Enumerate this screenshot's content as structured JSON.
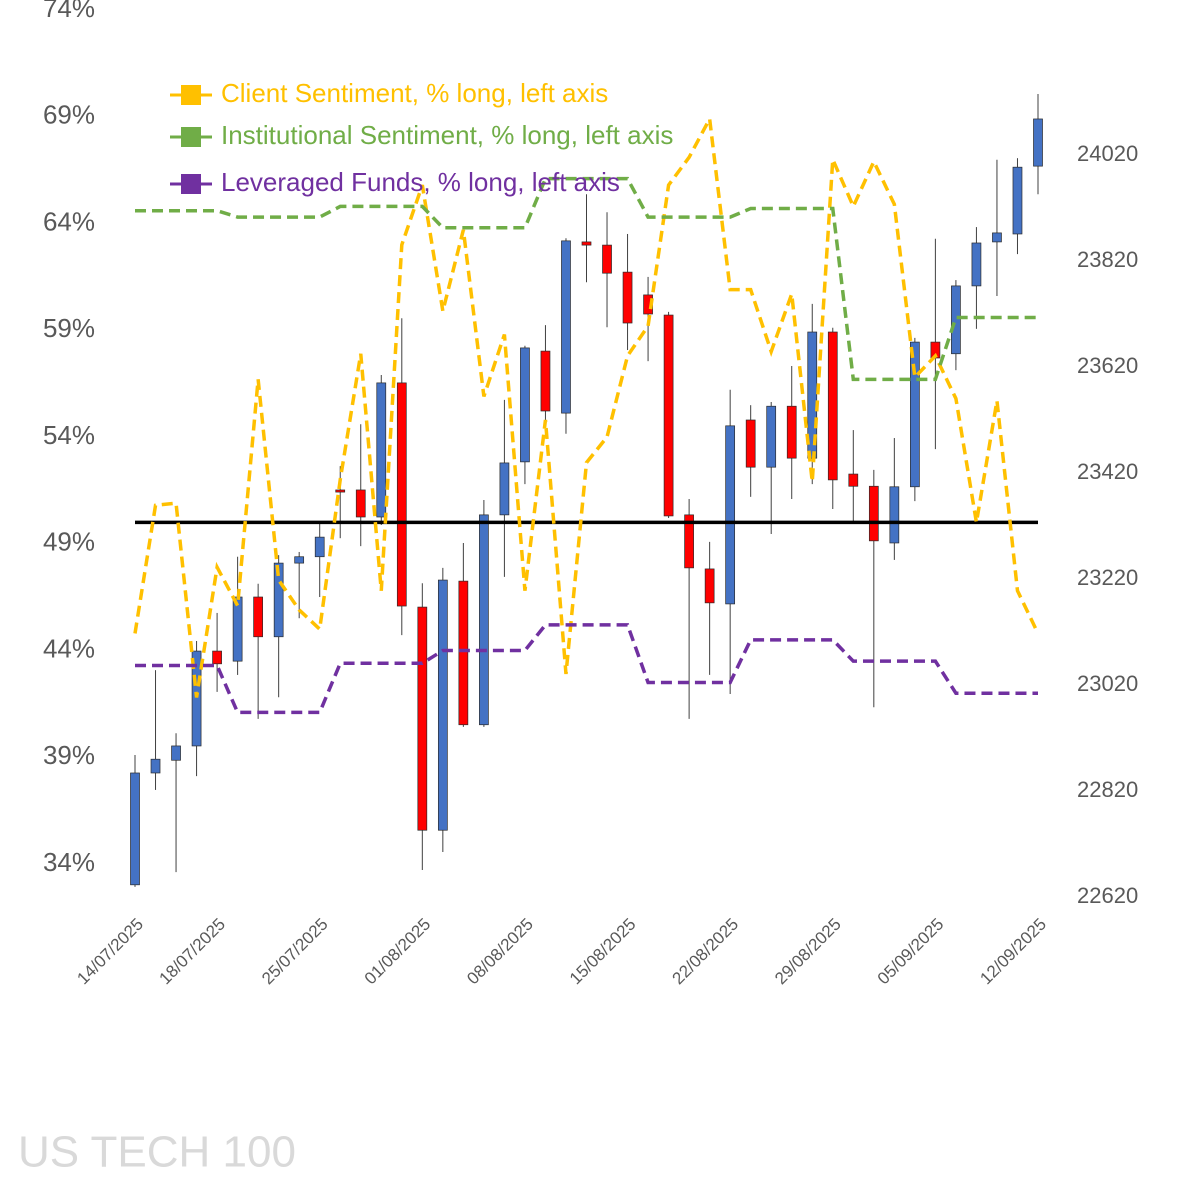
{
  "chart_data": {
    "type": "candlestick",
    "title": "US TECH 100",
    "categories": [
      "14/07/2025",
      null,
      null,
      null,
      "18/07/2025",
      null,
      null,
      null,
      null,
      "25/07/2025",
      null,
      null,
      null,
      null,
      "01/08/2025",
      null,
      null,
      null,
      null,
      "08/08/2025",
      null,
      null,
      null,
      null,
      "15/08/2025",
      null,
      null,
      null,
      null,
      "22/08/2025",
      null,
      null,
      null,
      null,
      "29/08/2025",
      null,
      null,
      null,
      null,
      "05/09/2025",
      null,
      null,
      null,
      null,
      "12/09/2025"
    ],
    "candles": {
      "axis": "y2",
      "up_color": "#4472c4",
      "down_color": "#ff0000",
      "open": [
        22643,
        22854,
        22878,
        22905,
        23084,
        23065,
        23186,
        23111,
        23250,
        23262,
        23388,
        23388,
        23337,
        23590,
        23167,
        22746,
        23216,
        22945,
        23341,
        23441,
        23650,
        23533,
        23856,
        23850,
        23799,
        23756,
        23718,
        23341,
        23239,
        23173,
        23520,
        23431,
        23546,
        23448,
        23686,
        23418,
        23395,
        23288,
        23394,
        23667,
        23645,
        23773,
        23856,
        23871,
        23999
      ],
      "high": [
        22888,
        23048,
        22929,
        23103,
        23156,
        23262,
        23211,
        23265,
        23271,
        23328,
        23433,
        23512,
        23605,
        23712,
        23212,
        23241,
        23288,
        23369,
        23558,
        23660,
        23699,
        23863,
        23946,
        23912,
        23871,
        23790,
        23724,
        23371,
        23290,
        23577,
        23548,
        23554,
        23622,
        23739,
        23694,
        23501,
        23426,
        23486,
        23675,
        23862,
        23784,
        23884,
        24011,
        24014,
        24135
      ],
      "low": [
        22639,
        22822,
        22667,
        22848,
        23007,
        23039,
        22956,
        22997,
        23146,
        23186,
        23297,
        23282,
        23322,
        23114,
        22671,
        22705,
        22941,
        22941,
        23224,
        23399,
        23520,
        23494,
        23780,
        23695,
        23652,
        23631,
        23335,
        22956,
        23039,
        23003,
        23375,
        23305,
        23371,
        23399,
        23352,
        23328,
        22978,
        23256,
        23367,
        23465,
        23614,
        23692,
        23754,
        23833,
        23946
      ],
      "close": [
        22854,
        22880,
        22905,
        23084,
        23060,
        23186,
        23111,
        23250,
        23262,
        23299,
        23384,
        23337,
        23590,
        23169,
        22746,
        23218,
        22945,
        23341,
        23439,
        23656,
        23537,
        23858,
        23850,
        23797,
        23703,
        23720,
        23339,
        23241,
        23175,
        23509,
        23431,
        23546,
        23448,
        23686,
        23407,
        23395,
        23292,
        23394,
        23667,
        23637,
        23773,
        23854,
        23873,
        23997,
        24088
      ]
    },
    "series": [
      {
        "name": "Client Sentiment, % long, left axis",
        "color": "#ffc000",
        "values": [
          44.8,
          50.8,
          50.9,
          41.8,
          47.9,
          46.1,
          56.7,
          47.3,
          45.9,
          45.0,
          52.0,
          57.9,
          46.8,
          63.0,
          65.8,
          59.9,
          63.7,
          55.9,
          58.8,
          46.8,
          54.8,
          42.9,
          52.8,
          54.0,
          57.8,
          59.2,
          65.8,
          67.1,
          68.9,
          60.9,
          60.9,
          58.0,
          60.7,
          51.9,
          67.0,
          64.8,
          66.9,
          64.9,
          56.8,
          57.8,
          55.8,
          50.0,
          55.7,
          46.8,
          44.8
        ]
      },
      {
        "name": "Institutional Sentiment, % long, left axis",
        "color": "#70ad47",
        "values": [
          64.6,
          64.6,
          64.6,
          64.6,
          64.6,
          64.3,
          64.3,
          64.3,
          64.3,
          64.3,
          64.8,
          64.8,
          64.8,
          64.8,
          64.8,
          63.8,
          63.8,
          63.8,
          63.8,
          63.8,
          66.1,
          66.1,
          66.1,
          66.1,
          66.1,
          64.3,
          64.3,
          64.3,
          64.3,
          64.3,
          64.7,
          64.7,
          64.7,
          64.7,
          64.7,
          56.7,
          56.7,
          56.7,
          56.7,
          56.7,
          59.6,
          59.6,
          59.6,
          59.6,
          59.6
        ]
      },
      {
        "name": "Leveraged Funds, % long, left axis",
        "color": "#7030a0",
        "values": [
          43.3,
          43.3,
          43.3,
          43.3,
          43.3,
          41.1,
          41.1,
          41.1,
          41.1,
          41.1,
          43.4,
          43.4,
          43.4,
          43.4,
          43.4,
          44.0,
          44.0,
          44.0,
          44.0,
          44.0,
          45.2,
          45.2,
          45.2,
          45.2,
          45.2,
          42.5,
          42.5,
          42.5,
          42.5,
          42.5,
          44.5,
          44.5,
          44.5,
          44.5,
          44.5,
          43.5,
          43.5,
          43.5,
          43.5,
          43.5,
          42.0,
          42.0,
          42.0,
          42.0,
          42.0
        ]
      }
    ],
    "reference_line": {
      "value": 50,
      "color": "#000000"
    },
    "ylim": [
      34,
      74
    ],
    "yticks": [
      {
        "value": 34,
        "label": "34%"
      },
      {
        "value": 39,
        "label": "39%"
      },
      {
        "value": 44,
        "label": "44%"
      },
      {
        "value": 49,
        "label": "49%"
      },
      {
        "value": 54,
        "label": "54%"
      },
      {
        "value": 59,
        "label": "59%"
      },
      {
        "value": 64,
        "label": "64%"
      },
      {
        "value": 69,
        "label": "69%"
      },
      {
        "value": 74,
        "label": "74%"
      }
    ],
    "y2lim": [
      22620,
      24020
    ],
    "y2ticks": [
      22620,
      22820,
      23020,
      23220,
      23420,
      23620,
      23820,
      24020
    ],
    "grid": false,
    "legend": "top-left"
  }
}
